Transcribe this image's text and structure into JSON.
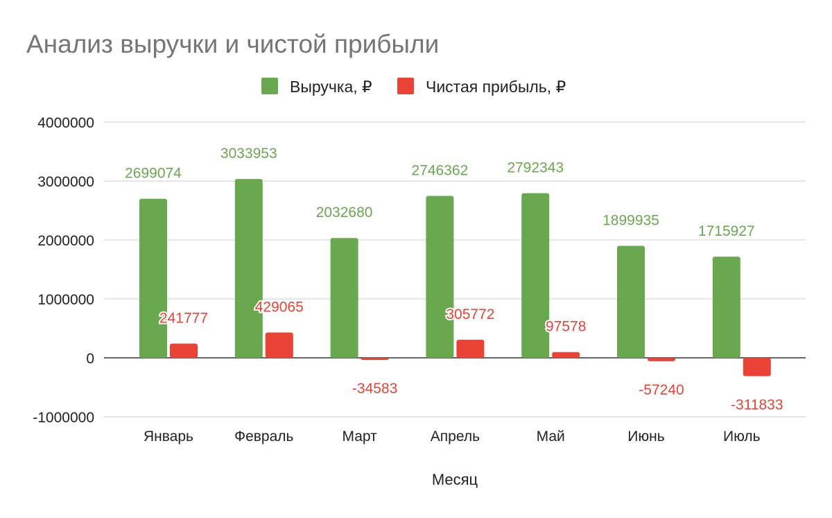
{
  "chart_data": {
    "type": "bar",
    "title": "Анализ выручки и чистой прибыли",
    "xlabel": "Месяц",
    "ylabel": "",
    "categories": [
      "Январь",
      "Февраль",
      "Март",
      "Апрель",
      "Май",
      "Июнь",
      "Июль"
    ],
    "series": [
      {
        "name": "Выручка, ₽",
        "color": "#6aa84f",
        "values": [
          2699074,
          3033953,
          2032680,
          2746362,
          2792343,
          1899935,
          1715927
        ]
      },
      {
        "name": "Чистая прибыль, ₽",
        "color": "#ea4335",
        "values": [
          241777,
          429065,
          -34583,
          305772,
          97578,
          -57240,
          -311833
        ]
      }
    ],
    "ylim": [
      -1000000,
      4000000
    ],
    "yticks": [
      -1000000,
      0,
      1000000,
      2000000,
      3000000,
      4000000
    ],
    "ytick_labels": [
      "-1000000",
      "0",
      "1000000",
      "2000000",
      "3000000",
      "4000000"
    ],
    "grid": true,
    "legend": "top-center"
  }
}
